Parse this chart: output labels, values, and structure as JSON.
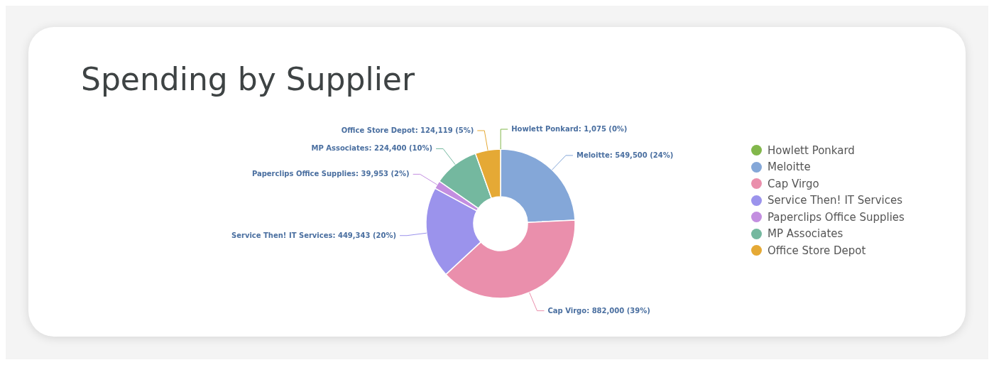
{
  "chart_data": {
    "type": "donut",
    "title": "Spending by Supplier",
    "categories": [
      "Howlett Ponkard",
      "Meloitte",
      "Cap Virgo",
      "Service Then! IT Services",
      "Paperclips Office Supplies",
      "MP Associates",
      "Office Store Depot"
    ],
    "values": [
      1075,
      549500,
      882000,
      449343,
      39953,
      224400,
      124119
    ],
    "value_labels": [
      "Howlett Ponkard: 1,075 (0%)",
      "Meloitte: 549,500 (24%)",
      "Cap Virgo: 882,000 (39%)",
      "Service Then! IT Services: 449,343 (20%)",
      "Paperclips Office Supplies: 39,953 (2%)",
      "MP Associates: 224,400 (10%)",
      "Office Store Depot: 124,119 (5%)"
    ],
    "colors": [
      "#82b74b",
      "#84a7d8",
      "#ea8fac",
      "#9b93ec",
      "#c38ee0",
      "#74b89f",
      "#e5a935"
    ],
    "legend": "right"
  }
}
